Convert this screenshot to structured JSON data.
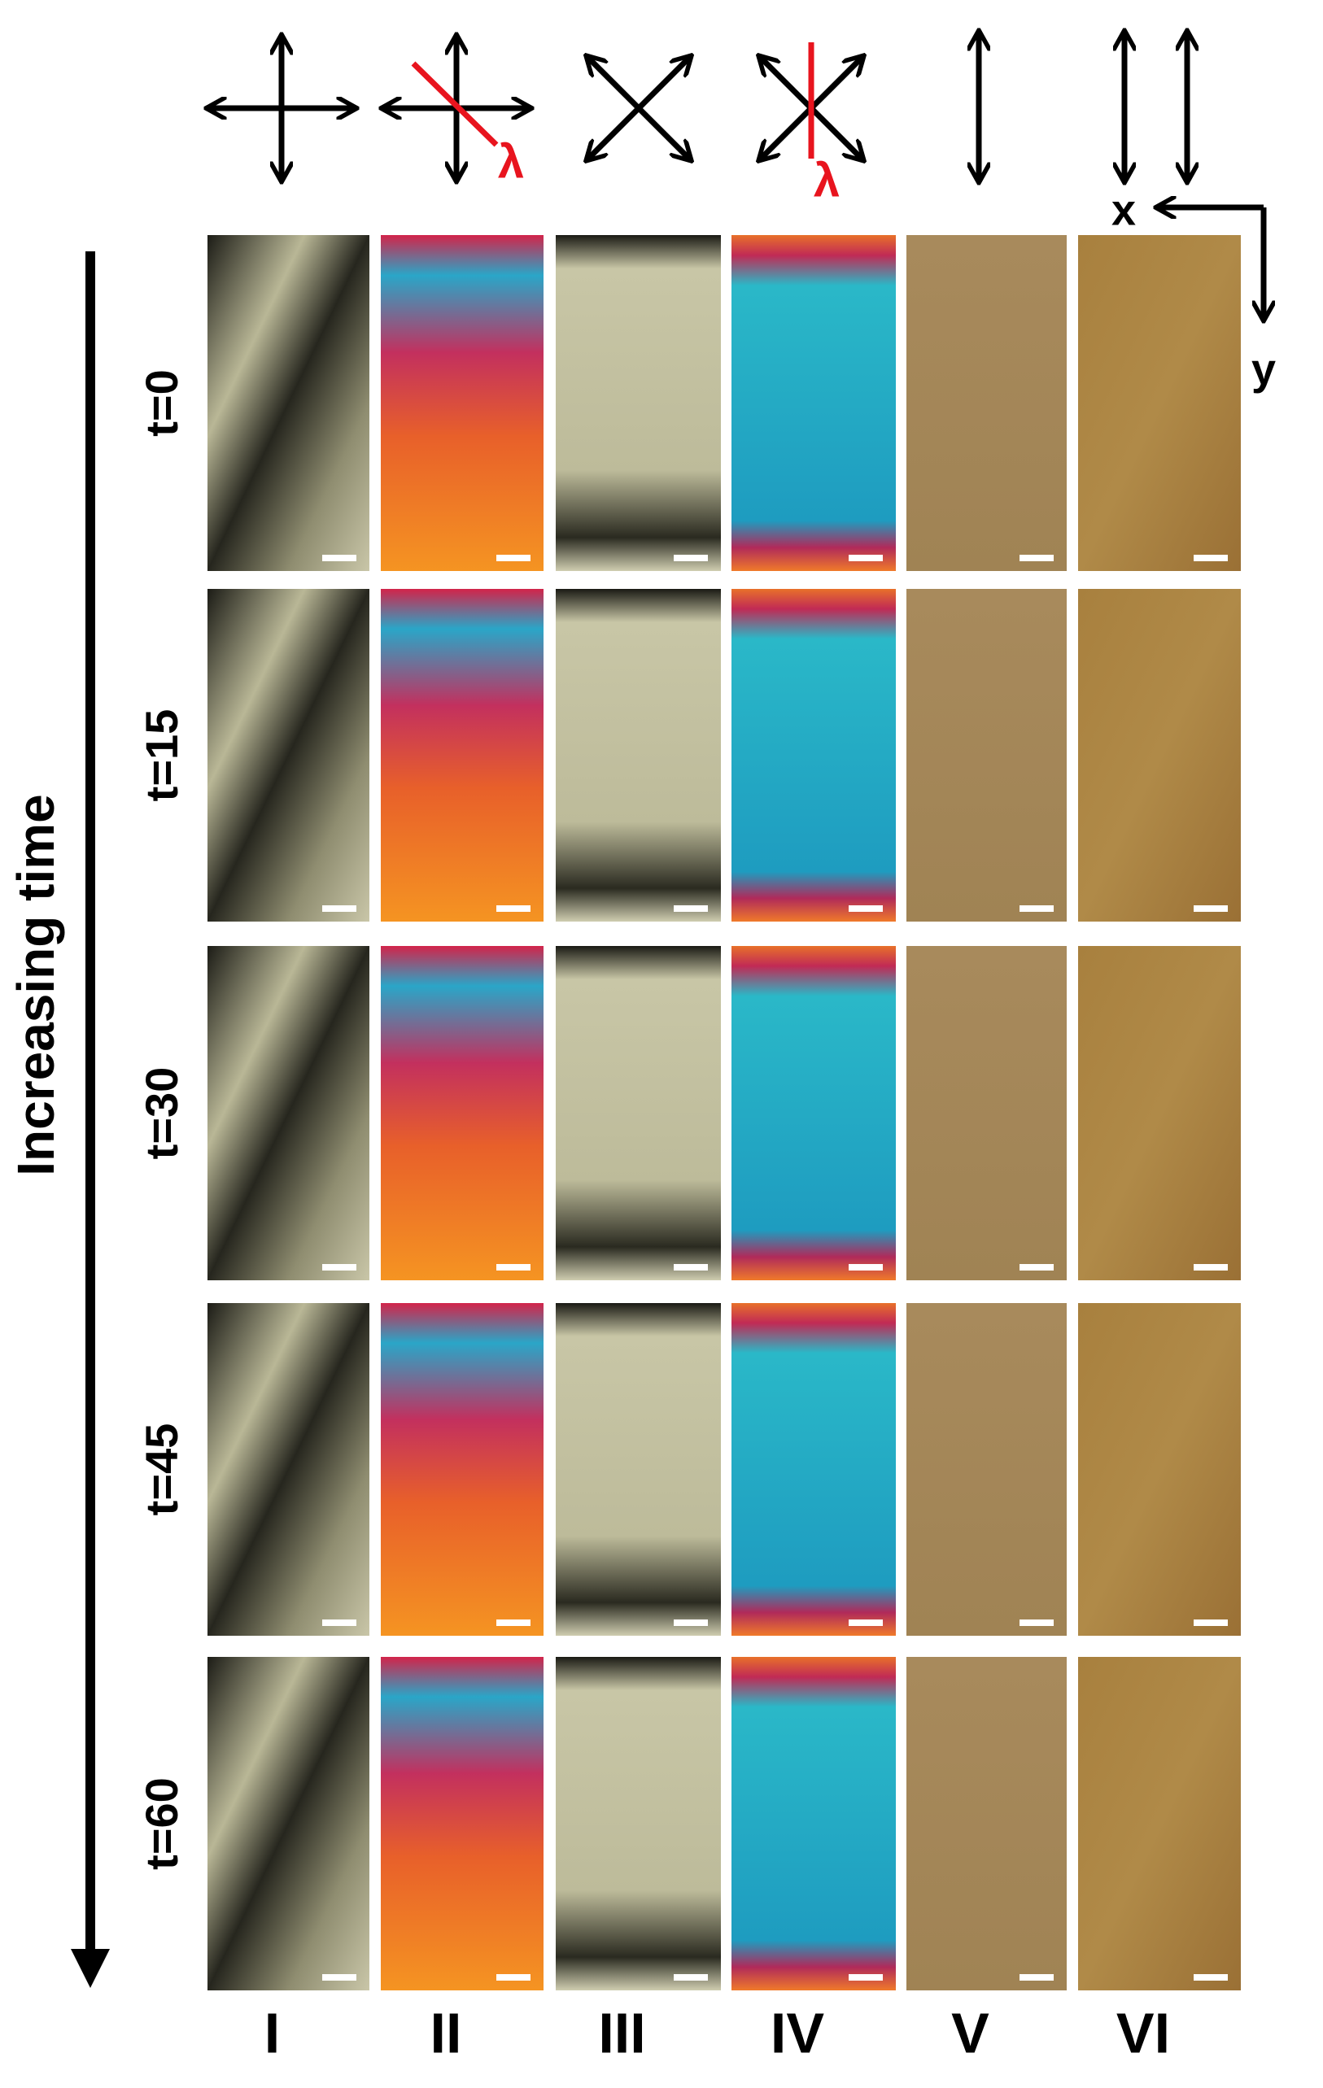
{
  "time_axis_label": "Increasing time",
  "rows": [
    {
      "label": "t=0"
    },
    {
      "label": "t=15"
    },
    {
      "label": "t=30"
    },
    {
      "label": "t=45"
    },
    {
      "label": "t=60"
    }
  ],
  "columns": [
    {
      "label": "I"
    },
    {
      "label": "II"
    },
    {
      "label": "III"
    },
    {
      "label": "IV"
    },
    {
      "label": "V"
    },
    {
      "label": "VI"
    }
  ],
  "polarizer_icons": {
    "lambda_labels": [
      "λ",
      "λ"
    ]
  },
  "axes": {
    "x": "x",
    "y": "y"
  }
}
